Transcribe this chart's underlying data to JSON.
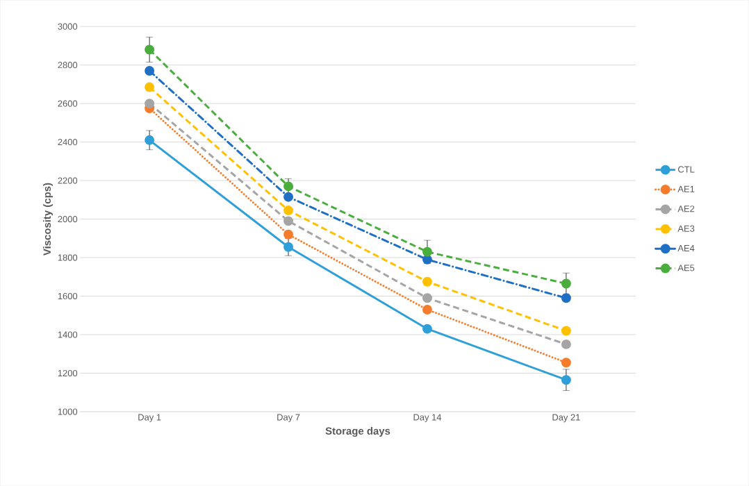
{
  "chart_data": {
    "type": "line",
    "xlabel": "Storage days",
    "ylabel": "Viscosity (cps)",
    "categories": [
      "Day 1",
      "Day 7",
      "Day 14",
      "Day 21"
    ],
    "ylim": [
      1000,
      3000
    ],
    "yticks": [
      1000,
      1200,
      1400,
      1600,
      1800,
      2000,
      2200,
      2400,
      2600,
      2800,
      3000
    ],
    "grid": "y",
    "legend": "right",
    "marker": "circle",
    "series": [
      {
        "name": "CTL",
        "color": "#2e9fd8",
        "line_style": "solid",
        "values": [
          2410,
          1855,
          1430,
          1165
        ],
        "errors": [
          50,
          45,
          null,
          55
        ]
      },
      {
        "name": "AE1",
        "color": "#f47c2c",
        "line_style": "dotted",
        "values": [
          2575,
          1920,
          1530,
          1255
        ]
      },
      {
        "name": "AE2",
        "color": "#a5a5a5",
        "line_style": "dashed",
        "values": [
          2600,
          1990,
          1590,
          1350
        ]
      },
      {
        "name": "AE3",
        "color": "#ffc000",
        "line_style": "dashed",
        "values": [
          2685,
          2045,
          1675,
          1420
        ]
      },
      {
        "name": "AE4",
        "color": "#1f6fc5",
        "line_style": "dashdot",
        "values": [
          2770,
          2115,
          1790,
          1590
        ]
      },
      {
        "name": "AE5",
        "color": "#4aad3e",
        "line_style": "dashed",
        "values": [
          2880,
          2170,
          1830,
          1665
        ],
        "errors": [
          65,
          40,
          60,
          55
        ]
      }
    ]
  }
}
